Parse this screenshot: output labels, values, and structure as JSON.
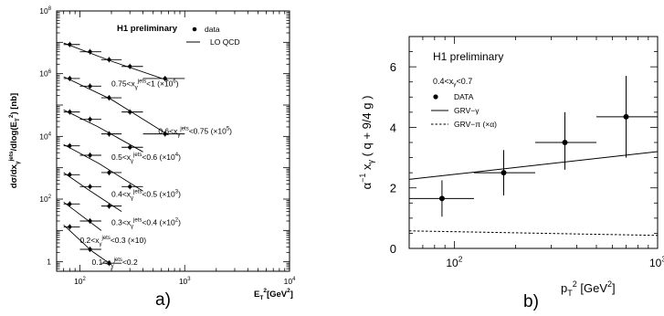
{
  "chart_data": [
    {
      "type": "scatter",
      "panel_label": "a)",
      "title": "H1 preliminary",
      "xlabel": "E_T^2 [GeV^2]",
      "ylabel": "dσ/dx_γ^jets/dlog(E_T^2) [nb]",
      "x_scale": "log",
      "y_scale": "log",
      "xlim": [
        60,
        10000
      ],
      "ylim": [
        0.5,
        100000000
      ],
      "x_ticks": [
        {
          "value": 100,
          "mantissa": "10",
          "exp": "2"
        },
        {
          "value": 1000,
          "mantissa": "10",
          "exp": "3"
        },
        {
          "value": 10000,
          "mantissa": "10",
          "exp": "4"
        }
      ],
      "y_ticks": [
        {
          "value": 1,
          "mantissa": "1",
          "exp": ""
        },
        {
          "value": 100,
          "mantissa": "10",
          "exp": "2"
        },
        {
          "value": 10000,
          "mantissa": "10",
          "exp": "4"
        },
        {
          "value": 1000000,
          "mantissa": "10",
          "exp": "6"
        },
        {
          "value": 100000000,
          "mantissa": "10",
          "exp": "8"
        }
      ],
      "legend": [
        {
          "label": "data",
          "marker": "dot"
        },
        {
          "label": "LO QCD",
          "marker": "line"
        }
      ],
      "series": [
        {
          "name": "0.75<x_γ^jets<1 (×10^6)",
          "x": [
            80,
            125,
            190,
            300,
            650
          ],
          "y": [
            8500000,
            5000000,
            2800000,
            1700000,
            700000
          ],
          "xerr": [
            [
              70,
              100
            ],
            [
              100,
              160
            ],
            [
              160,
              250
            ],
            [
              250,
              400
            ],
            [
              400,
              1000
            ]
          ],
          "fit_x": [
            70,
            200,
            700
          ],
          "fit_y": [
            9500000,
            2500000,
            600000
          ],
          "label_parts": [
            "0.75<x",
            "γ",
            "jets",
            "<1 (×10",
            "6",
            ")"
          ],
          "label_x": 200,
          "label_y": 400000
        },
        {
          "name": "0.6<x_γ^jets<0.75 (×10^5)",
          "x": [
            80,
            125,
            190,
            300,
            650
          ],
          "y": [
            700000,
            400000,
            170000,
            60000,
            12000
          ],
          "xerr": [
            [
              70,
              100
            ],
            [
              100,
              160
            ],
            [
              160,
              250
            ],
            [
              250,
              400
            ],
            [
              400,
              1000
            ]
          ],
          "fit_x": [
            70,
            200,
            700
          ],
          "fit_y": [
            800000,
            150000,
            11000
          ],
          "label_parts": [
            "0.6<x",
            "γ",
            "jets",
            "<0.75 (×10",
            "5",
            ")"
          ],
          "label_x": 560,
          "label_y": 12000
        },
        {
          "name": "0.5<x_γ^jets<0.6 (×10^4)",
          "x": [
            80,
            125,
            190,
            300
          ],
          "y": [
            60000,
            35000,
            12000,
            4500
          ],
          "xerr": [
            [
              70,
              100
            ],
            [
              100,
              160
            ],
            [
              160,
              250
            ],
            [
              250,
              400
            ]
          ],
          "fit_x": [
            70,
            150,
            400
          ],
          "fit_y": [
            70000,
            20000,
            3200
          ],
          "label_parts": [
            "0.5<x",
            "γ",
            "jets",
            "<0.6 (×10",
            "4",
            ")"
          ],
          "label_x": 200,
          "label_y": 1800
        },
        {
          "name": "0.4<x_γ^jets<0.5 (×10^3)",
          "x": [
            80,
            125,
            190,
            300
          ],
          "y": [
            5000,
            2500,
            700,
            250
          ],
          "xerr": [
            [
              70,
              100
            ],
            [
              100,
              160
            ],
            [
              160,
              250
            ],
            [
              250,
              400
            ]
          ],
          "fit_x": [
            70,
            150,
            400
          ],
          "fit_y": [
            5500,
            1400,
            180
          ],
          "label_parts": [
            "0.4<x",
            "γ",
            "jets",
            "<0.5 (×10",
            "3",
            ")"
          ],
          "label_x": 200,
          "label_y": 120
        },
        {
          "name": "0.3<x_γ^jets<0.4 (×10^2)",
          "x": [
            80,
            125,
            190
          ],
          "y": [
            600,
            250,
            60
          ],
          "xerr": [
            [
              70,
              100
            ],
            [
              100,
              160
            ],
            [
              160,
              250
            ]
          ],
          "fit_x": [
            70,
            120,
            250
          ],
          "fit_y": [
            700,
            200,
            40
          ],
          "label_parts": [
            "0.3<x",
            "γ",
            "jets",
            "<0.4 (×10",
            "2",
            ")"
          ],
          "label_x": 200,
          "label_y": 15
        },
        {
          "name": "0.2<x_γ^jets<0.3 (×10)",
          "x": [
            80,
            125
          ],
          "y": [
            70,
            20
          ],
          "xerr": [
            [
              70,
              100
            ],
            [
              100,
              160
            ]
          ],
          "fit_x": [
            70,
            160
          ],
          "fit_y": [
            80,
            10
          ],
          "label_parts": [
            "0.2<x",
            "γ",
            "jets",
            "<0.3 (×10)",
            "",
            ""
          ],
          "label_x": 100,
          "label_y": 4
        },
        {
          "name": "0.1<x_γ^jets<0.2",
          "x": [
            80,
            125,
            190
          ],
          "y": [
            13,
            2.5,
            0.9
          ],
          "xerr": [
            [
              70,
              100
            ],
            [
              100,
              160
            ],
            [
              160,
              250
            ]
          ],
          "fit_x": [
            70,
            130,
            200
          ],
          "fit_y": [
            15,
            2.2,
            0.8
          ],
          "label_parts": [
            "0.1<x",
            "γ",
            "jets",
            "<0.2",
            "",
            ""
          ],
          "label_x": 130,
          "label_y": 0.8
        }
      ]
    },
    {
      "type": "scatter",
      "panel_label": "b)",
      "title": "H1 preliminary",
      "cut_label": "0.4<x_γ<0.7",
      "xlabel": "p_T^2 [GeV^2]",
      "ylabel": "α^-1 x_γ ( q + 9/4 g )",
      "x_scale": "log",
      "xlim": [
        60,
        1000
      ],
      "ylim": [
        0,
        7
      ],
      "x_ticks": [
        {
          "value": 100,
          "mantissa": "10",
          "exp": "2"
        },
        {
          "value": 1000,
          "mantissa": "10",
          "exp": "3"
        }
      ],
      "y_ticks": [
        0,
        2,
        4,
        6
      ],
      "legend": [
        {
          "label": "DATA",
          "marker": "dot"
        },
        {
          "label": "GRV−γ",
          "marker": "solid"
        },
        {
          "label": "GRV−π (×α)",
          "marker": "dashed"
        }
      ],
      "series": [
        {
          "name": "DATA",
          "x": [
            87,
            175,
            350,
            700
          ],
          "y": [
            1.65,
            2.5,
            3.5,
            4.35
          ],
          "xerr": [
            [
              60,
              125
            ],
            [
              125,
              250
            ],
            [
              250,
              500
            ],
            [
              500,
              1000
            ]
          ],
          "yerr": [
            [
              1.05,
              2.25
            ],
            [
              1.75,
              3.25
            ],
            [
              2.6,
              4.5
            ],
            [
              3.0,
              5.7
            ]
          ]
        },
        {
          "name": "GRV−γ",
          "x": [
            60,
            1000
          ],
          "y": [
            2.28,
            3.2
          ],
          "style": "solid"
        },
        {
          "name": "GRV−π (×α)",
          "x": [
            60,
            1000
          ],
          "y": [
            0.58,
            0.43
          ],
          "style": "dashed"
        }
      ]
    }
  ]
}
